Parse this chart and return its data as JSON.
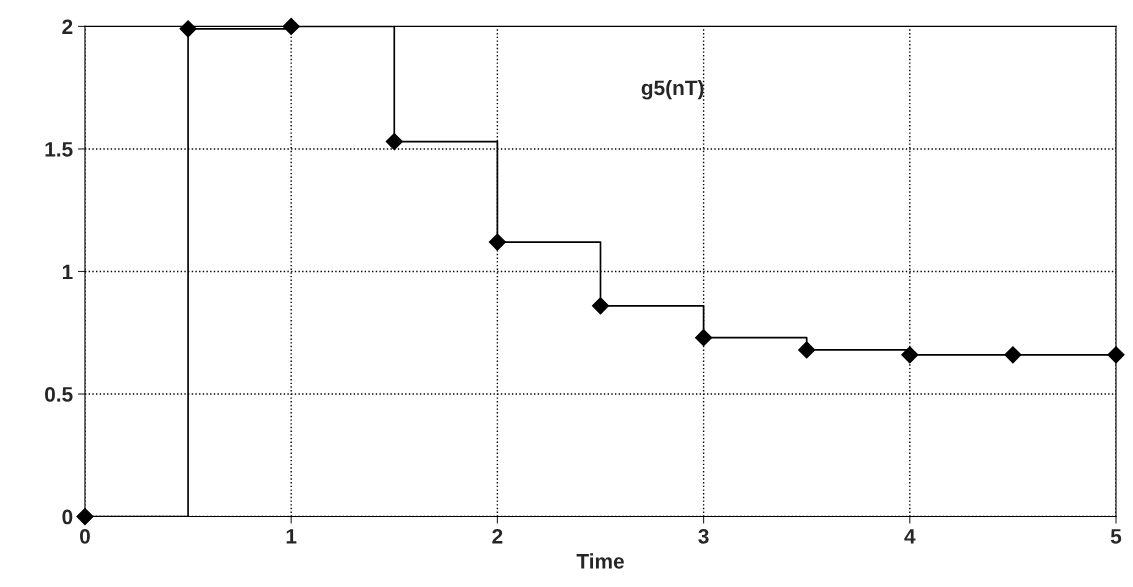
{
  "chart_data": {
    "type": "step",
    "xlabel": "Time",
    "annotations": [
      "g5(nT)"
    ],
    "x": [
      0,
      0.5,
      1,
      1.5,
      2,
      2.5,
      3,
      3.5,
      4,
      4.5,
      5
    ],
    "series": [
      {
        "color": "#000000",
        "values": [
          0,
          1.99,
          2.0,
          1.53,
          1.12,
          0.86,
          0.73,
          0.68,
          0.66,
          0.66,
          0.66
        ]
      }
    ],
    "xlim": [
      0,
      5
    ],
    "ylim": [
      0,
      2
    ],
    "xticks": [
      0,
      1,
      2,
      3,
      4,
      5
    ],
    "yticks": [
      0,
      0.5,
      1,
      1.5,
      2
    ],
    "grid": true,
    "marker": "diamond",
    "line_style": "solid",
    "legend": false
  }
}
